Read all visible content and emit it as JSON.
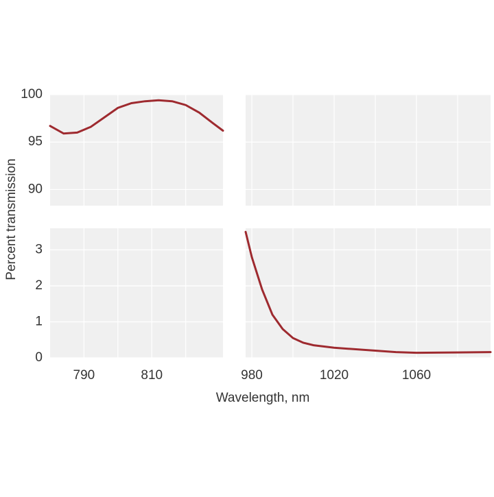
{
  "chart_data": [
    {
      "type": "line",
      "xlabel": "Wavelength, nm",
      "ylabel": "Percent  transmission",
      "x": [
        780,
        784,
        788,
        792,
        796,
        800,
        804,
        808,
        812,
        816,
        820,
        824,
        828,
        831
      ],
      "series": [
        {
          "color": "#9e2a2f",
          "values": [
            96.7,
            95.9,
            96.0,
            96.6,
            97.6,
            98.6,
            99.1,
            99.3,
            99.4,
            99.3,
            98.9,
            98.1,
            97.0,
            96.2
          ]
        }
      ],
      "xlim": [
        780,
        831
      ],
      "ylim": [
        88.3,
        100
      ],
      "xticks": [
        790,
        810
      ],
      "xminorticks": [
        800,
        820
      ],
      "yticks": [
        90,
        95,
        100
      ],
      "grid": true
    },
    {
      "type": "line",
      "x": [
        977,
        980,
        985,
        990,
        995,
        1000,
        1005,
        1010,
        1020,
        1030,
        1040,
        1050,
        1060,
        1080,
        1096
      ],
      "series": [
        {
          "color": "#9e2a2f",
          "values": [
            3.5,
            2.8,
            1.9,
            1.2,
            0.8,
            0.55,
            0.42,
            0.35,
            0.28,
            0.24,
            0.2,
            0.16,
            0.14,
            0.15,
            0.16
          ]
        }
      ],
      "xlim": [
        977,
        1096
      ],
      "ylim": [
        0,
        3.6
      ],
      "xticks": [
        980,
        1020,
        1060
      ],
      "xminorticks": [
        1000,
        1040,
        1080
      ],
      "yticks": [
        0,
        1,
        2,
        3
      ],
      "grid": true
    }
  ]
}
